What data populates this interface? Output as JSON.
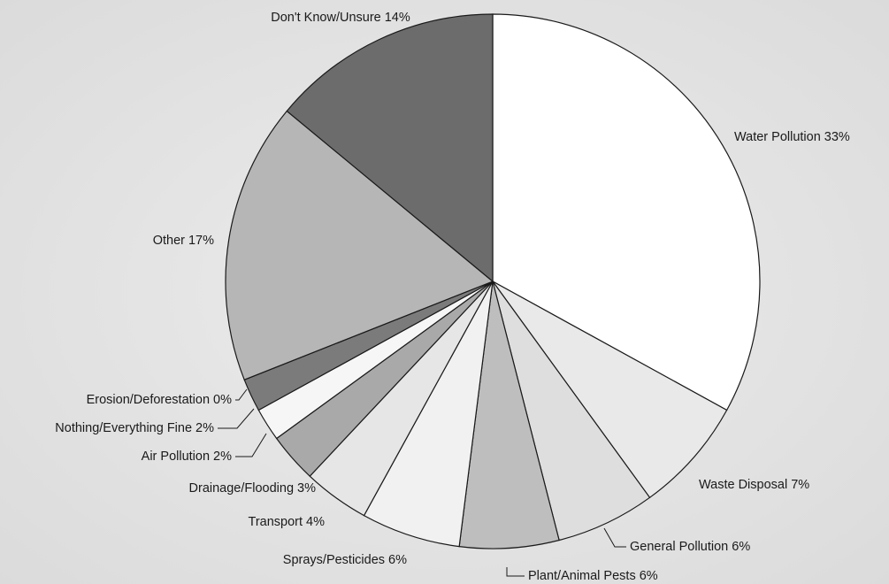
{
  "chart_data": {
    "type": "pie",
    "categories": [
      "Water Pollution",
      "Waste Disposal",
      "General Pollution",
      "Plant/Animal Pests",
      "Sprays/Pesticides",
      "Transport",
      "Drainage/Flooding",
      "Air Pollution",
      "Nothing/Everything Fine",
      "Erosion/Deforestation",
      "Other",
      "Don't Know/Unsure"
    ],
    "values": [
      33,
      7,
      6,
      6,
      6,
      4,
      3,
      2,
      2,
      0,
      17,
      14
    ],
    "value_labels": [
      "33%",
      "7%",
      "6%",
      "6%",
      "6%",
      "4%",
      "3%",
      "2%",
      "2%",
      "0%",
      "17%",
      "14%"
    ],
    "colors": [
      "#ffffff",
      "#e9e9e9",
      "#dedede",
      "#bebebe",
      "#f1f1f1",
      "#e6e6e6",
      "#a9a9a9",
      "#f6f6f6",
      "#7b7b7b",
      "#595959",
      "#b6b6b6",
      "#6c6c6c"
    ]
  }
}
